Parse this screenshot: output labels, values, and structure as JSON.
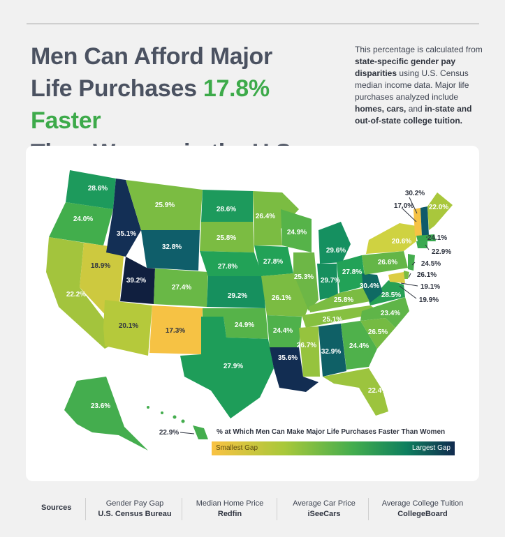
{
  "title": {
    "line1": "Men Can Afford Major",
    "line2a": "Life Purchases ",
    "highlight": "17.8% Faster",
    "line3": "Than Women in the U.S."
  },
  "description": {
    "p1": "This percentage is calculated from ",
    "b1": "state-specific gender pay disparities",
    "p2": " using U.S. Census median income data. Major life purchases analyzed include ",
    "b2": "homes, cars,",
    "p3": " and ",
    "b3": "in-state and out-of-state college tuition."
  },
  "legend": {
    "title": "% at Which Men Can Make Major Life Purchases Faster Than Women",
    "low": "Smallest Gap",
    "high": "Largest Gap"
  },
  "colors": {
    "lowest": "#f9c243",
    "low": "#a8c83a",
    "mid": "#44ad4e",
    "high": "#0e7f5e",
    "highest": "#112b4f",
    "accent": "#3daa4a"
  },
  "states": [
    {
      "state": "WA",
      "value": "28.6%"
    },
    {
      "state": "OR",
      "value": "24.0%"
    },
    {
      "state": "CA",
      "value": "22.2%"
    },
    {
      "state": "NV",
      "value": "18.9%"
    },
    {
      "state": "ID",
      "value": "35.1%"
    },
    {
      "state": "MT",
      "value": "25.9%"
    },
    {
      "state": "WY",
      "value": "32.8%"
    },
    {
      "state": "UT",
      "value": "39.2%"
    },
    {
      "state": "AZ",
      "value": "20.1%"
    },
    {
      "state": "CO",
      "value": "27.4%"
    },
    {
      "state": "NM",
      "value": "17.3%"
    },
    {
      "state": "ND",
      "value": "28.6%"
    },
    {
      "state": "SD",
      "value": "25.8%"
    },
    {
      "state": "NE",
      "value": "27.8%"
    },
    {
      "state": "KS",
      "value": "29.2%"
    },
    {
      "state": "OK",
      "value": "24.9%"
    },
    {
      "state": "TX",
      "value": "27.9%"
    },
    {
      "state": "MN",
      "value": "26.4%"
    },
    {
      "state": "IA",
      "value": "27.8%"
    },
    {
      "state": "MO",
      "value": "26.1%"
    },
    {
      "state": "AR",
      "value": "24.4%"
    },
    {
      "state": "LA",
      "value": "35.6%"
    },
    {
      "state": "WI",
      "value": "24.9%"
    },
    {
      "state": "IL",
      "value": "25.3%"
    },
    {
      "state": "MI",
      "value": "29.6%"
    },
    {
      "state": "IN",
      "value": "29.7%"
    },
    {
      "state": "OH",
      "value": "27.8%"
    },
    {
      "state": "KY",
      "value": "25.8%"
    },
    {
      "state": "TN",
      "value": "25.1%"
    },
    {
      "state": "MS",
      "value": "26.7%"
    },
    {
      "state": "AL",
      "value": "32.9%"
    },
    {
      "state": "GA",
      "value": "24.4%"
    },
    {
      "state": "FL",
      "value": "22.4%"
    },
    {
      "state": "SC",
      "value": "26.5%"
    },
    {
      "state": "NC",
      "value": "23.4%"
    },
    {
      "state": "VA",
      "value": "28.5%"
    },
    {
      "state": "WV",
      "value": "30.4%"
    },
    {
      "state": "PA",
      "value": "26.6%"
    },
    {
      "state": "NY",
      "value": "20.6%"
    },
    {
      "state": "ME",
      "value": "22.0%"
    },
    {
      "state": "NH",
      "value": "30.2%"
    },
    {
      "state": "VT",
      "value": "17.0%"
    },
    {
      "state": "MA",
      "value": "24.1%"
    },
    {
      "state": "CT",
      "value": "22.9%"
    },
    {
      "state": "NJ",
      "value": "24.5%"
    },
    {
      "state": "DE",
      "value": "26.1%"
    },
    {
      "state": "MD",
      "value": "19.1%"
    },
    {
      "state": "DC",
      "value": "19.9%"
    },
    {
      "state": "AK",
      "value": "23.6%"
    },
    {
      "state": "HI",
      "value": "22.9%"
    }
  ],
  "sources": {
    "label": "Sources",
    "items": [
      {
        "name": "Gender Pay Gap",
        "org": "U.S. Census Bureau"
      },
      {
        "name": "Median Home Price",
        "org": "Redfin"
      },
      {
        "name": "Average Car Price",
        "org": "iSeeCars"
      },
      {
        "name": "Average College Tuition",
        "org": "CollegeBoard"
      }
    ]
  }
}
